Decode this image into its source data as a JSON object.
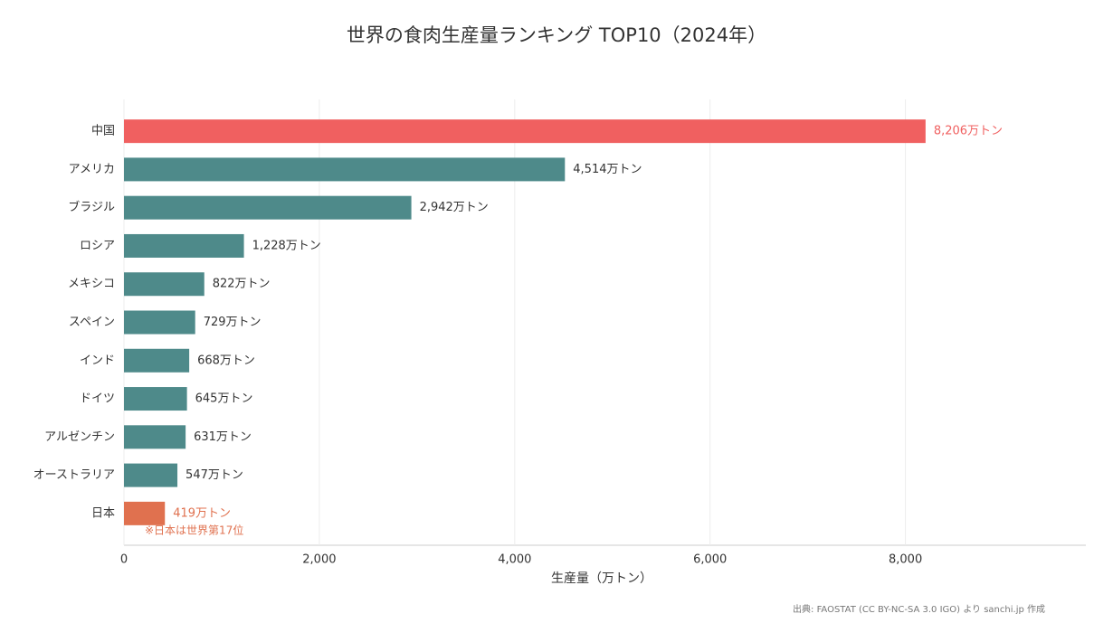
{
  "chart_data": {
    "type": "barh",
    "title": "世界の食肉生産量ランキング TOP10（2024年）",
    "x_label": "生産量（万トン）",
    "categories": [
      "中国",
      "アメリカ",
      "ブラジル",
      "ロシア",
      "メキシコ",
      "スペイン",
      "インド",
      "ドイツ",
      "アルゼンチン",
      "オーストラリア",
      "日本"
    ],
    "values": [
      8206,
      4514,
      2942,
      1228,
      822,
      729,
      668,
      645,
      631,
      547,
      419
    ],
    "value_labels": [
      "8,206万トン",
      "4,514万トン",
      "2,942万トン",
      "1,228万トン",
      "822万トン",
      "729万トン",
      "668万トン",
      "645万トン",
      "631万トン",
      "547万トン",
      "419万トン"
    ],
    "color": "#4e8a8a",
    "bar_colors": [
      "#f06060",
      "#4e8a8a",
      "#4e8a8a",
      "#4e8a8a",
      "#4e8a8a",
      "#4e8a8a",
      "#4e8a8a",
      "#4e8a8a",
      "#4e8a8a",
      "#4e8a8a",
      "#e0714f"
    ],
    "xlim": [
      0,
      9847
    ],
    "xticks": [
      0,
      {
        "value": 2000,
        "label": "2,000"
      },
      {
        "value": 4000,
        "label": "4,000"
      },
      {
        "value": 6000,
        "label": "6,000"
      },
      {
        "value": 8000,
        "label": "8,000"
      }
    ],
    "grid": true,
    "annotation": "※日本は世界第17位",
    "source": "出典: FAOSTAT (CC BY-NC-SA 3.0 IGO) より sanchi.jp 作成"
  }
}
